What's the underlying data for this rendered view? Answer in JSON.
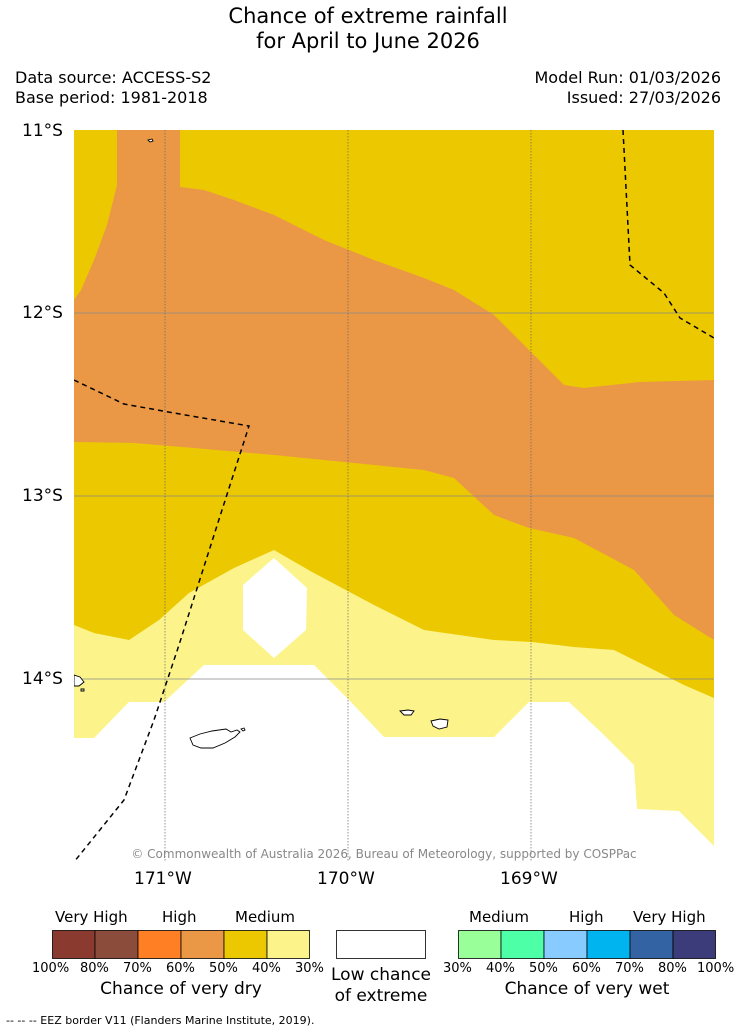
{
  "title_line1": "Chance of extreme rainfall",
  "title_line2": "for April to June 2026",
  "data_source": "Data source: ACCESS-S2",
  "base_period": "Base period: 1981-2018",
  "model_run": "Model Run: 01/03/2026",
  "issued": "Issued: 27/03/2026",
  "lat_labels": [
    "11°S",
    "12°S",
    "13°S",
    "14°S"
  ],
  "lon_labels": [
    "171°W",
    "170°W",
    "169°W"
  ],
  "copyright": "© Commonwealth of Australia 2026, Bureau of Meteorology, supported by COSPPac",
  "dry_legend": {
    "captions": [
      "Very High",
      "High",
      "Medium"
    ],
    "ticks": [
      "100%",
      "80%",
      "70%",
      "60%",
      "50%",
      "40%",
      "30%"
    ],
    "colors": [
      "#8b3a30",
      "#8b4c3c",
      "#ff7f24",
      "#eb9846",
      "#ecc800",
      "#fcf48a"
    ],
    "title": "Chance of very dry"
  },
  "low_legend": {
    "title_line1": "Low chance",
    "title_line2": "of extreme",
    "color": "#ffffff"
  },
  "wet_legend": {
    "captions": [
      "Medium",
      "High",
      "Very High"
    ],
    "ticks": [
      "30%",
      "40%",
      "50%",
      "60%",
      "70%",
      "80%",
      "100%"
    ],
    "colors": [
      "#99ff99",
      "#4dffa6",
      "#88ccff",
      "#00b4f0",
      "#3463a3",
      "#3c3c7a"
    ],
    "title": "Chance of very wet"
  },
  "footer": "--  --  -- EEZ border V11 (Flanders Marine Institute, 2019).",
  "map_colors": {
    "very_dry_high": "#eb9846",
    "dry_medium": "#ecc800",
    "dry_low_medium": "#fcf48a",
    "low_chance": "#ffffff"
  }
}
